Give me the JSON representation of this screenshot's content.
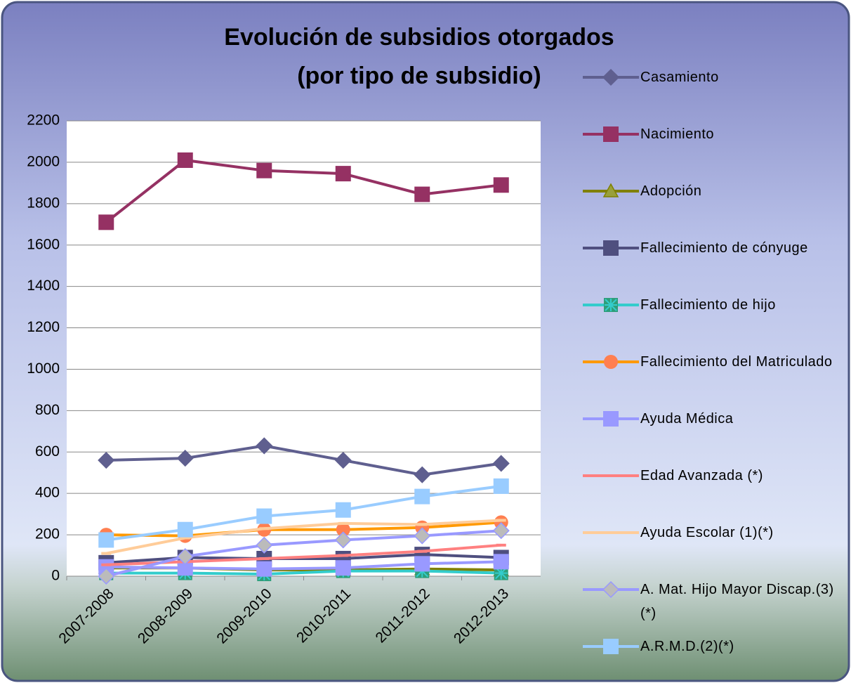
{
  "chart_data": {
    "type": "line",
    "title_lines": [
      "Evolución de subsidios otorgados",
      "(por tipo de subsidio)"
    ],
    "categories": [
      "2007-2008",
      "2008-2009",
      "2009-2010",
      "2010-2011",
      "2011-2012",
      "2012-2013"
    ],
    "ylim": [
      0,
      2200
    ],
    "yticks": [
      0,
      200,
      400,
      600,
      800,
      1000,
      1200,
      1400,
      1600,
      1800,
      2000,
      2200
    ],
    "grid": true,
    "legend": "right",
    "series": [
      {
        "name": "Casamiento",
        "color": "#5f5f8f",
        "marker": "diamond",
        "values": [
          560,
          570,
          630,
          560,
          490,
          545
        ]
      },
      {
        "name": "Nacimiento",
        "color": "#953163",
        "marker": "square",
        "values": [
          1710,
          2010,
          1960,
          1945,
          1845,
          1890
        ]
      },
      {
        "name": "Adopción",
        "color": "#808000",
        "marker": "triangle",
        "values": [
          40,
          40,
          30,
          30,
          35,
          30
        ]
      },
      {
        "name": "Fallecimiento de cónyuge",
        "color": "#4f4f7f",
        "marker": "square",
        "values": [
          65,
          90,
          85,
          85,
          105,
          90
        ]
      },
      {
        "name": "Fallecimiento de hijo",
        "color": "#33cccc",
        "marker": "star-square",
        "values": [
          15,
          15,
          10,
          25,
          25,
          15
        ]
      },
      {
        "name": "Fallecimiento del Matriculado",
        "color": "#ff9900",
        "marker": "circle",
        "values": [
          200,
          195,
          225,
          225,
          235,
          260
        ]
      },
      {
        "name": "Ayuda Médica",
        "color": "#9999ff",
        "marker": "square",
        "values": [
          45,
          40,
          35,
          40,
          60,
          70
        ]
      },
      {
        "name": "Edad Avanzada (*)",
        "color": "#ff8080",
        "marker": "dash",
        "values": [
          55,
          70,
          85,
          100,
          120,
          150
        ]
      },
      {
        "name": "Ayuda Escolar (1)(*)",
        "color": "#ffcc99",
        "marker": "dash",
        "values": [
          110,
          185,
          230,
          255,
          250,
          270
        ]
      },
      {
        "name": "A. Mat. Hijo Mayor Discap.(3)(*)",
        "color": "#9999ff",
        "marker": "diamond-grey",
        "values": [
          0,
          95,
          150,
          175,
          195,
          220
        ]
      },
      {
        "name": "A.R.M.D.(2)(*)",
        "color": "#99ccff",
        "marker": "square",
        "values": [
          175,
          225,
          290,
          320,
          385,
          435
        ]
      }
    ]
  }
}
